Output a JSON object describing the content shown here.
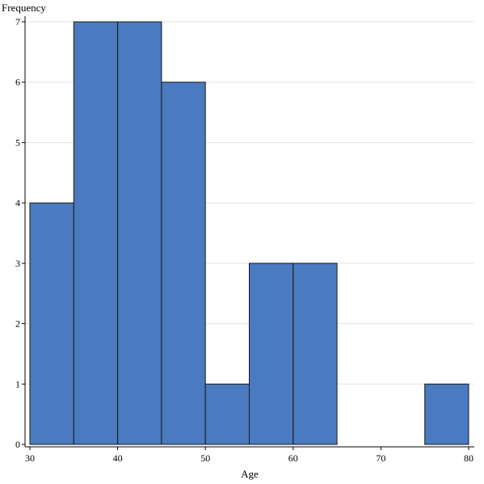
{
  "chart_data": {
    "type": "bar",
    "title": "",
    "xlabel": "Age",
    "ylabel": "Frequency",
    "bins": [
      {
        "start": 30,
        "end": 35,
        "count": 4
      },
      {
        "start": 35,
        "end": 40,
        "count": 7
      },
      {
        "start": 40,
        "end": 45,
        "count": 7
      },
      {
        "start": 45,
        "end": 50,
        "count": 6
      },
      {
        "start": 50,
        "end": 55,
        "count": 1
      },
      {
        "start": 55,
        "end": 60,
        "count": 3
      },
      {
        "start": 60,
        "end": 65,
        "count": 3
      },
      {
        "start": 65,
        "end": 70,
        "count": 0
      },
      {
        "start": 70,
        "end": 75,
        "count": 0
      },
      {
        "start": 75,
        "end": 80,
        "count": 1
      }
    ],
    "xlim": [
      30,
      80
    ],
    "ylim": [
      0,
      7
    ],
    "xticks": [
      30,
      40,
      50,
      60,
      70,
      80
    ],
    "yticks": [
      0,
      1,
      2,
      3,
      4,
      5,
      6,
      7
    ],
    "grid": true,
    "bar_color": "#4a7abf",
    "edge_color": "#1a1a1a"
  }
}
